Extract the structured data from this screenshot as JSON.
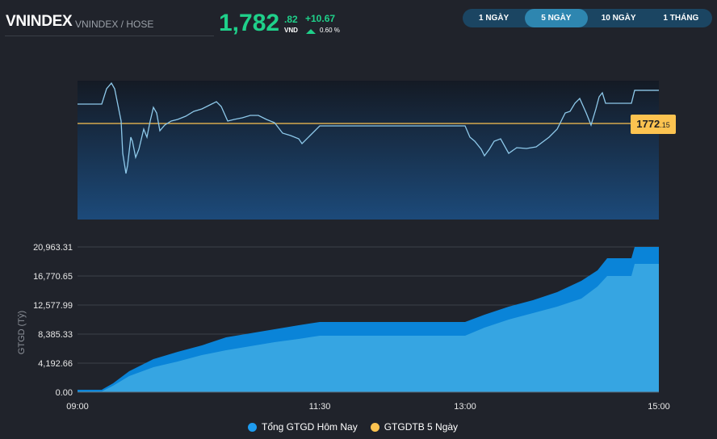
{
  "header": {
    "title": "VNINDEX",
    "subtitle": "VNINDEX / HOSE",
    "price_int": "1,782",
    "price_dec": ".82",
    "unit": "VND",
    "change": "+10.67",
    "change_pct": "0.60 %",
    "color_up": "#1fd08a"
  },
  "tabs": [
    {
      "label": "1 NGÀY",
      "active": false
    },
    {
      "label": "5 NGÀY",
      "active": true
    },
    {
      "label": "10 NGÀY",
      "active": false
    },
    {
      "label": "1 THÁNG",
      "active": false
    }
  ],
  "reference": {
    "int": "1772",
    "dec": ".15",
    "value": 1772.15,
    "color": "#fcc350"
  },
  "chart_data": [
    {
      "type": "line",
      "title": "",
      "line_color": "#8ec9ea",
      "x_range": [
        "09:00",
        "15:00"
      ],
      "points": [
        [
          "09:00",
          1778.39
        ],
        [
          "09:15",
          1778.39
        ],
        [
          "09:18",
          1783.33
        ],
        [
          "09:21",
          1785.15
        ],
        [
          "09:23",
          1783.33
        ],
        [
          "09:25",
          1778.13
        ],
        [
          "09:27",
          1772.93
        ],
        [
          "09:28",
          1762.53
        ],
        [
          "09:30",
          1756.03
        ],
        [
          "09:31",
          1758.63
        ],
        [
          "09:33",
          1767.73
        ],
        [
          "09:34",
          1766.43
        ],
        [
          "09:36",
          1761.23
        ],
        [
          "09:38",
          1763.83
        ],
        [
          "09:41",
          1770.33
        ],
        [
          "09:43",
          1767.73
        ],
        [
          "09:45",
          1772.93
        ],
        [
          "09:47",
          1777.35
        ],
        [
          "09:49",
          1775.53
        ],
        [
          "09:51",
          1769.81
        ],
        [
          "09:54",
          1771.63
        ],
        [
          "09:58",
          1772.93
        ],
        [
          "10:02",
          1773.45
        ],
        [
          "10:07",
          1774.49
        ],
        [
          "10:12",
          1776.05
        ],
        [
          "10:17",
          1776.83
        ],
        [
          "10:22",
          1778.13
        ],
        [
          "10:26",
          1779.17
        ],
        [
          "10:29",
          1777.61
        ],
        [
          "10:33",
          1772.93
        ],
        [
          "10:37",
          1773.45
        ],
        [
          "10:42",
          1773.97
        ],
        [
          "10:47",
          1774.75
        ],
        [
          "10:52",
          1774.75
        ],
        [
          "10:57",
          1773.45
        ],
        [
          "11:02",
          1772.41
        ],
        [
          "11:07",
          1769.03
        ],
        [
          "11:12",
          1768.25
        ],
        [
          "11:17",
          1767.21
        ],
        [
          "11:19",
          1765.65
        ],
        [
          "11:24",
          1768.25
        ],
        [
          "11:30",
          1771.37
        ],
        [
          "13:00",
          1771.37
        ],
        [
          "13:03",
          1767.73
        ],
        [
          "13:06",
          1766.43
        ],
        [
          "13:10",
          1763.83
        ],
        [
          "13:12",
          1761.75
        ],
        [
          "13:15",
          1763.83
        ],
        [
          "13:18",
          1766.43
        ],
        [
          "13:22",
          1767.21
        ],
        [
          "13:27",
          1762.53
        ],
        [
          "13:32",
          1764.35
        ],
        [
          "13:38",
          1764.09
        ],
        [
          "13:44",
          1764.61
        ],
        [
          "13:52",
          1767.73
        ],
        [
          "13:57",
          1770.33
        ],
        [
          "14:02",
          1775.53
        ],
        [
          "14:05",
          1776.05
        ],
        [
          "14:08",
          1778.65
        ],
        [
          "14:11",
          1780.21
        ],
        [
          "14:15",
          1775.53
        ],
        [
          "14:18",
          1771.63
        ],
        [
          "14:21",
          1776.83
        ],
        [
          "14:23",
          1780.73
        ],
        [
          "14:25",
          1782.03
        ],
        [
          "14:27",
          1778.65
        ],
        [
          "14:43",
          1778.65
        ],
        [
          "14:45",
          1782.82
        ],
        [
          "15:00",
          1782.82
        ]
      ]
    },
    {
      "type": "area",
      "ylabel": "GTGD (Tỷ)",
      "ylim": [
        0,
        20963.31
      ],
      "yticks": [
        "20,963.31",
        "16,770.65",
        "12,577.99",
        "8,385.33",
        "4,192.66",
        "0.00"
      ],
      "ytick_values": [
        20963.31,
        16770.65,
        12577.99,
        8385.33,
        4192.66,
        0
      ],
      "xticks": [
        "09:00",
        "11:30",
        "13:00",
        "15:00"
      ],
      "x": [
        "09:00",
        "09:15",
        "09:22",
        "09:32",
        "09:47",
        "10:02",
        "10:17",
        "10:32",
        "10:47",
        "11:02",
        "11:17",
        "11:30",
        "13:00",
        "13:12",
        "13:27",
        "13:42",
        "13:57",
        "14:12",
        "14:22",
        "14:28",
        "14:43",
        "14:45",
        "15:00"
      ],
      "series": [
        {
          "name": "Tổng GTGD Hôm Nay",
          "color": "#0a84d8",
          "legend_color": "#1e9cf0",
          "values": [
            349,
            349,
            1281,
            3028,
            4775,
            5823,
            6755,
            7919,
            8502,
            9084,
            9666,
            10132,
            10132,
            11180,
            12345,
            13276,
            14441,
            16071,
            17585,
            19332,
            19332,
            20963,
            20963
          ]
        },
        {
          "name": "GTGDTB 5 Ngày",
          "color": "#36a5e2",
          "legend_color": "#fcc350",
          "values": [
            116,
            116,
            932,
            2329,
            3610,
            4425,
            5357,
            6056,
            6638,
            7221,
            7686,
            8152,
            8152,
            9317,
            10481,
            11413,
            12345,
            13509,
            15256,
            16770,
            16770,
            18517,
            18517
          ]
        }
      ],
      "legend_position": "bottom"
    }
  ]
}
